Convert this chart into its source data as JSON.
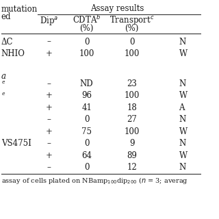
{
  "background": "#f5f5f0",
  "text_color": "#1a1a1a",
  "line_color": "#333333",
  "font_size": 8.5,
  "footer_font_size": 7.0,
  "figsize": [
    3.2,
    3.2
  ],
  "dpi": 100,
  "rows": [
    {
      "label": "ΔC",
      "sup": "",
      "dip": "–",
      "cdta": "0",
      "trans": "0",
      "last": "N"
    },
    {
      "label": "NHIO",
      "sup": "",
      "dip": "+",
      "cdta": "100",
      "trans": "100",
      "last": "W"
    },
    {
      "label": "",
      "sup": "",
      "dip": "",
      "cdta": "",
      "trans": "",
      "last": ""
    },
    {
      "label": "a",
      "sup": "",
      "dip": "",
      "cdta": "",
      "trans": "",
      "last": ""
    },
    {
      "label": "",
      "sup": "e",
      "dip": "–",
      "cdta": "ND",
      "trans": "23",
      "last": "N"
    },
    {
      "label": "",
      "sup": "e",
      "dip": "+",
      "cdta": "96",
      "trans": "100",
      "last": "W"
    },
    {
      "label": "",
      "sup": "",
      "dip": "+",
      "cdta": "41",
      "trans": "18",
      "last": "A"
    },
    {
      "label": "",
      "sup": "",
      "dip": "–",
      "cdta": "0",
      "trans": "27",
      "last": "N"
    },
    {
      "label": "",
      "sup": "",
      "dip": "+",
      "cdta": "75",
      "trans": "100",
      "last": "W"
    },
    {
      "label": "VS475I",
      "sup": "",
      "dip": "–",
      "cdta": "0",
      "trans": "9",
      "last": "N"
    },
    {
      "label": "",
      "sup": "",
      "dip": "+",
      "cdta": "64",
      "trans": "89",
      "last": "W"
    },
    {
      "label": "",
      "sup": "",
      "dip": "–",
      "cdta": "0",
      "trans": "12",
      "last": "N"
    }
  ],
  "header_left1": "mutation",
  "header_left2": "ed",
  "header_title": "Assay results",
  "col_dip": "Dip",
  "col_dip_sup": "a",
  "col_cdta": "CDTA",
  "col_cdta_sup": "b",
  "col_cdta2": "(%)",
  "col_trans": "Transport",
  "col_trans_sup": "c",
  "col_trans2": "(%)",
  "footer": "assay of cells plated on NBamp"
}
